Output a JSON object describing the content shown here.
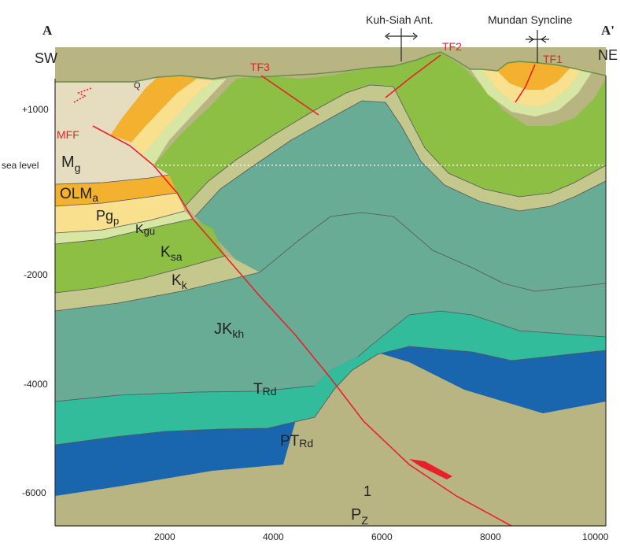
{
  "section": {
    "start_label": "A",
    "end_label": "A'",
    "left_direction": "SW",
    "right_direction": "NE"
  },
  "structures": {
    "anticline": "Kuh-Siah Ant.",
    "syncline": "Mundan Syncline"
  },
  "faults": {
    "mff": "MFF",
    "tf1": "TF1",
    "tf2": "TF2",
    "tf3": "TF3"
  },
  "y_axis": {
    "ticks": [
      "+1000",
      "sea level",
      "-2000",
      "-4000",
      "-6000"
    ]
  },
  "x_axis": {
    "ticks": [
      "2000",
      "4000",
      "6000",
      "8000",
      "10000"
    ]
  },
  "units": {
    "q": "Q",
    "mg": {
      "base": "M",
      "sub": "g"
    },
    "olma": {
      "base": "OLM",
      "sub": "a"
    },
    "pgp": {
      "base": "Pg",
      "sub": "p"
    },
    "kgu": {
      "base": "K",
      "sub": "gu"
    },
    "ksa": {
      "base": "K",
      "sub": "sa"
    },
    "kk": {
      "base": "K",
      "sub": "k"
    },
    "jkkh": {
      "base": "JK",
      "sub": "kh"
    },
    "trd": {
      "base": "T",
      "sub": "Rd"
    },
    "ptrd": {
      "base": "PT",
      "sub": "Rd"
    },
    "pz": {
      "base": "P",
      "sub": "Z",
      "sup": "1"
    }
  },
  "colors": {
    "fault_red": "#e8202a",
    "mg": "#e6dcc0",
    "olma": "#f3b12f",
    "pgp": "#f8e08f",
    "kgu": "#d8e6a4",
    "ksa": "#8dbf45",
    "kk": "#c5c88c",
    "jkkh": "#68ac96",
    "trd": "#33bc9c",
    "ptrd": "#1a66ae",
    "pz": "#b9b582"
  }
}
